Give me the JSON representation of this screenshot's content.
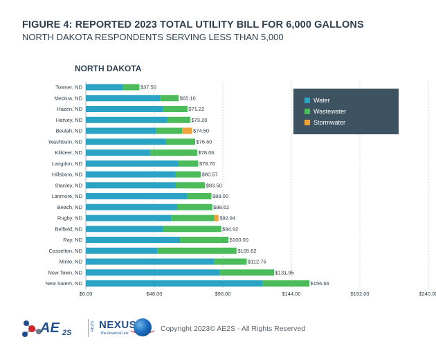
{
  "figure": {
    "title": "FIGURE 4: REPORTED 2023 TOTAL UTILITY BILL FOR 6,000 GALLONS",
    "subtitle": "NORTH DAKOTA RESPONDENTS SERVING LESS THAN 5,000",
    "state_label": "NORTH DAKOTA"
  },
  "colors": {
    "water": "#2ba3c4",
    "wastewater": "#4cbb5a",
    "stormwater": "#f0a23a",
    "legend_bg": "#3d5361",
    "grid": "#c7ccd0"
  },
  "chart_data": {
    "type": "bar",
    "orientation": "horizontal",
    "stacked": true,
    "categories": [
      "Towner, ND",
      "Medora, ND",
      "Hazen, ND",
      "Harvey, ND",
      "Beulah, ND",
      "Washburn, ND",
      "Killdeer, ND",
      "Langdon, ND",
      "Hillsboro, ND",
      "Stanley, ND",
      "Larimore, ND",
      "Beach, ND",
      "Rugby, ND",
      "Belfield, ND",
      "Ray, ND",
      "Casselton, ND",
      "Minto, ND",
      "New Town, ND",
      "New Salem, ND"
    ],
    "series": [
      {
        "name": "Water",
        "values": [
          26.0,
          52.0,
          54.0,
          57.0,
          49.0,
          56.0,
          45.0,
          65.0,
          63.0,
          63.0,
          71.0,
          64.0,
          60.0,
          54.0,
          66.0,
          50.0,
          90.0,
          94.0,
          124.0
        ]
      },
      {
        "name": "Wastewater",
        "values": [
          11.5,
          13.1,
          17.22,
          16.2,
          18.5,
          20.6,
          33.06,
          13.76,
          17.57,
          20.5,
          17.0,
          24.62,
          29.94,
          40.92,
          34.0,
          55.62,
          22.75,
          37.95,
          32.66
        ]
      },
      {
        "name": "Stormwater",
        "values": [
          0,
          0,
          0,
          0,
          7.0,
          0,
          0,
          0,
          0,
          0,
          0,
          0,
          3.0,
          0,
          0,
          0,
          0,
          0,
          0
        ]
      }
    ],
    "totals": [
      37.5,
      65.1,
      71.22,
      73.2,
      74.5,
      76.6,
      78.06,
      78.76,
      80.57,
      83.5,
      88.0,
      88.62,
      92.94,
      94.92,
      100.0,
      105.62,
      112.75,
      131.95,
      156.66
    ],
    "total_labels": [
      "$37.50",
      "$65.10",
      "$71.22",
      "$73.20",
      "$74.50",
      "$76.60",
      "$78.06",
      "$78.76",
      "$80.57",
      "$83.50",
      "$88.00",
      "$88.62",
      "$92.94",
      "$94.92",
      "$100.00",
      "$105.62",
      "$112.75",
      "$131.95",
      "$156.66"
    ],
    "xticks": [
      0,
      48,
      96,
      144,
      192,
      240
    ],
    "xtick_labels": [
      "$0.00",
      "$48.00",
      "$96.00",
      "$144.00",
      "$192.00",
      "$240.00"
    ],
    "xlim": [
      0,
      240
    ],
    "grid": true,
    "legend_position": "top-right"
  },
  "legend": {
    "items": [
      {
        "label": "Water",
        "color": "#2ba3c4"
      },
      {
        "label": "Wastewater",
        "color": "#4cbb5a"
      },
      {
        "label": "Stormwater",
        "color": "#f0a23a"
      }
    ]
  },
  "footer": {
    "ae2s_logo": "AE",
    "ae2s_sub": "2S",
    "nexus_prefix": "AE2S",
    "nexus_logo": "NEXUS",
    "nexus_tagline": "The Financial Link",
    "copyright": "Copyright 2023© AE2S - All Rights Reserved"
  }
}
